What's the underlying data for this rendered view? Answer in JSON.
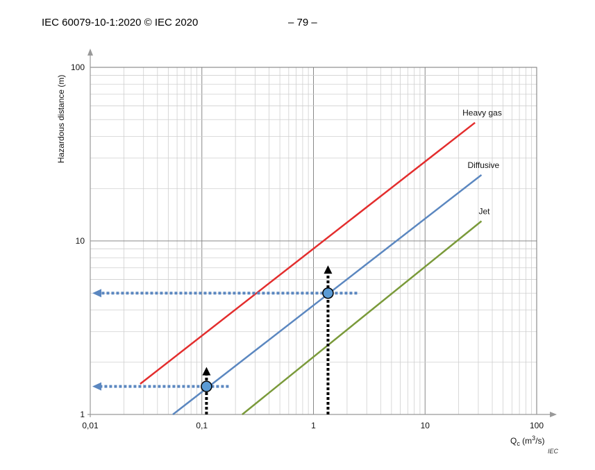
{
  "header": {
    "left": "IEC 60079-10-1:2020 © IEC 2020",
    "right": "– 79 –"
  },
  "chart_data": {
    "type": "line",
    "title": "",
    "xlabel": "Q",
    "xlabel_sub": "c",
    "xlabel_unit": " (m",
    "xlabel_unit_sup": "3",
    "xlabel_unit_end": "/s)",
    "ylabel": "Hazardous distance  (m)",
    "x_scale": "log",
    "y_scale": "log",
    "xlim": [
      0.01,
      100
    ],
    "ylim": [
      1,
      100
    ],
    "x_ticks": [
      0.01,
      0.1,
      1,
      10,
      100
    ],
    "x_tick_labels": [
      "0,01",
      "0,1",
      "1",
      "10",
      "100"
    ],
    "y_ticks": [
      1,
      10,
      100
    ],
    "y_tick_labels": [
      "1",
      "10",
      "100"
    ],
    "grid": true,
    "note": "IEC",
    "series": [
      {
        "name": "Heavy gas",
        "color": "#e32d2d",
        "points": [
          [
            0.028,
            1.5
          ],
          [
            28,
            48
          ]
        ]
      },
      {
        "name": "Diffusive",
        "color": "#5b87c0",
        "points": [
          [
            0.055,
            1.0
          ],
          [
            32,
            24
          ]
        ]
      },
      {
        "name": "Jet",
        "color": "#7a9a3a",
        "points": [
          [
            0.23,
            1.0
          ],
          [
            32,
            13
          ]
        ]
      }
    ],
    "example_points": [
      {
        "x": 0.11,
        "y": 1.45
      },
      {
        "x": 1.35,
        "y": 5.0
      }
    ],
    "guide_colors": {
      "horizontal": "#5b87c0",
      "vertical": "#000000",
      "point_fill": "#5b9bd5"
    }
  }
}
